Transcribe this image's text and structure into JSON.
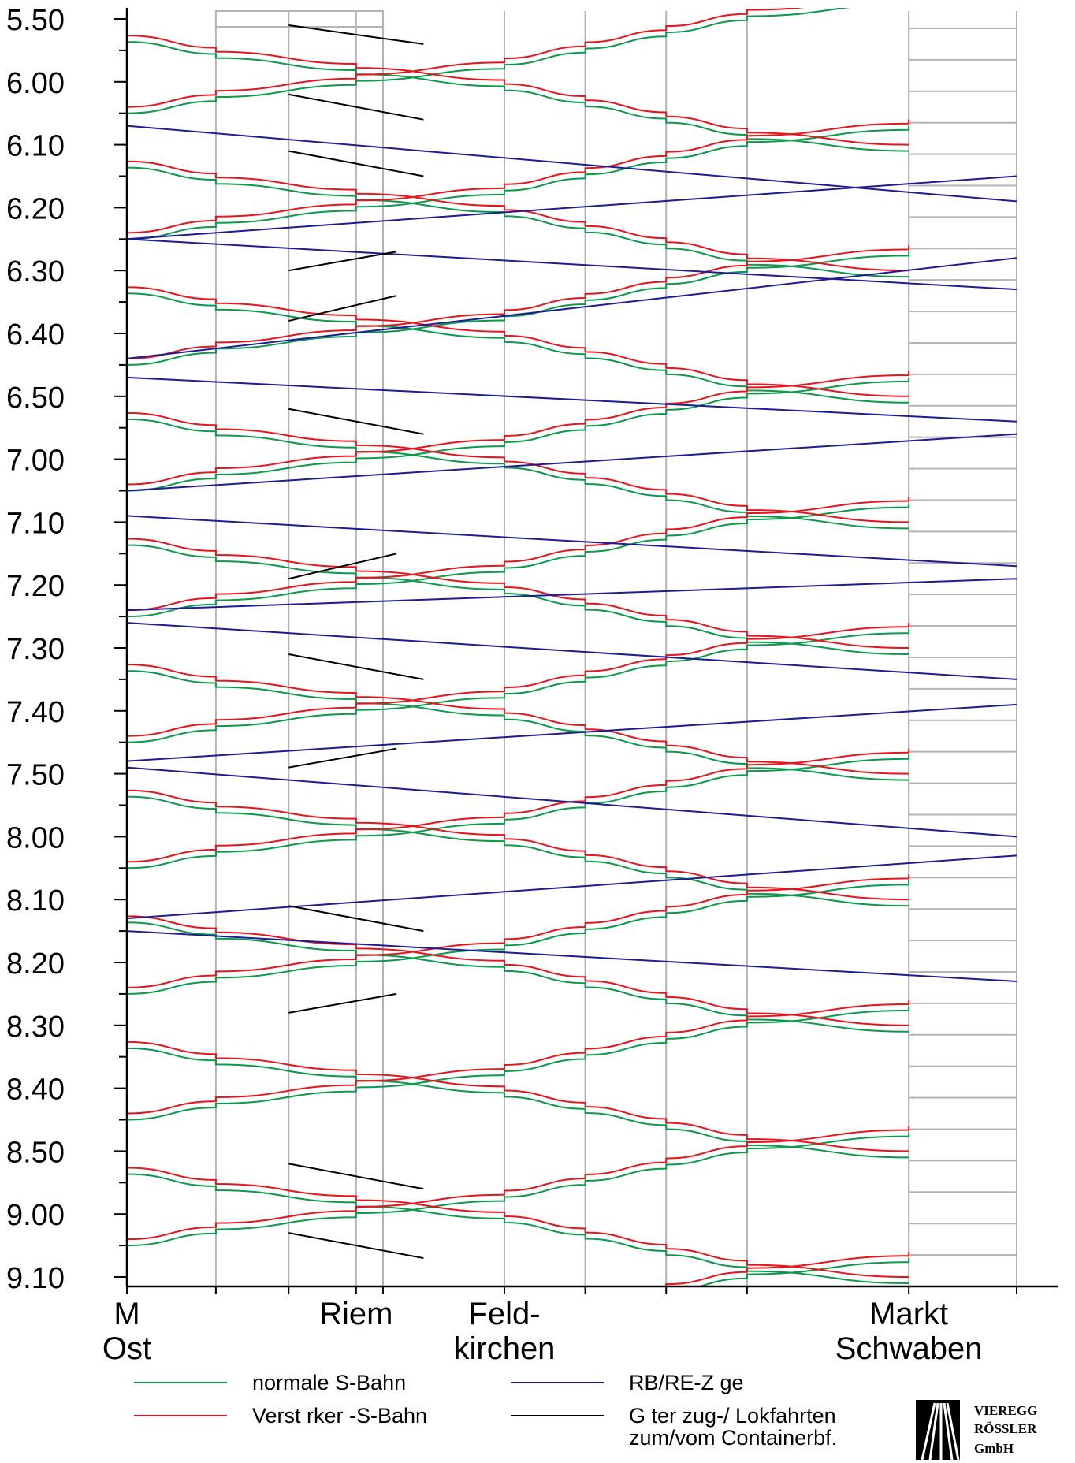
{
  "colors": {
    "normal": "#0a9a4a",
    "reinforcement": "#e8141c",
    "regional": "#1c1c96",
    "freight": "#000000",
    "grid": "#b4b4b4"
  },
  "logo": {
    "line1": "VIEREGG",
    "line2": "RÖSSLER",
    "line3": "GmbH",
    "icon": "rail-tracks-logo-icon"
  },
  "chart_data": {
    "type": "line",
    "title": "",
    "xlabel": "",
    "ylabel": "",
    "y_axis": {
      "start_minutes": 350,
      "end_minutes": 550,
      "inverted": true,
      "labels": [
        {
          "m": 350,
          "label": "5.50"
        },
        {
          "m": 360,
          "label": "6.00"
        },
        {
          "m": 370,
          "label": "6.10"
        },
        {
          "m": 380,
          "label": "6.20"
        },
        {
          "m": 390,
          "label": "6.30"
        },
        {
          "m": 400,
          "label": "6.40"
        },
        {
          "m": 410,
          "label": "6.50"
        },
        {
          "m": 420,
          "label": "7.00"
        },
        {
          "m": 430,
          "label": "7.10"
        },
        {
          "m": 440,
          "label": "7.20"
        },
        {
          "m": 450,
          "label": "7.30"
        },
        {
          "m": 460,
          "label": "7.40"
        },
        {
          "m": 470,
          "label": "7.50"
        },
        {
          "m": 480,
          "label": "8.00"
        },
        {
          "m": 490,
          "label": "8.10"
        },
        {
          "m": 500,
          "label": "8.20"
        },
        {
          "m": 510,
          "label": "8.30"
        },
        {
          "m": 520,
          "label": "8.40"
        },
        {
          "m": 530,
          "label": "8.50"
        },
        {
          "m": 540,
          "label": "9.00"
        },
        {
          "m": 550,
          "label": "9.10"
        }
      ]
    },
    "stations": [
      {
        "name": "M Ost",
        "km": 0,
        "lines": [
          "M",
          "Ost"
        ]
      },
      {
        "name": "",
        "km": 3.3,
        "lines": []
      },
      {
        "name": "",
        "km": 6.0,
        "lines": []
      },
      {
        "name": "Riem",
        "km": 8.5,
        "lines": [
          "Riem"
        ]
      },
      {
        "name": "",
        "km": 9.5,
        "lines": []
      },
      {
        "name": "Feldkirchen",
        "km": 14.0,
        "lines": [
          "Feld-",
          "kirchen"
        ]
      },
      {
        "name": "",
        "km": 17.0,
        "lines": []
      },
      {
        "name": "",
        "km": 20.0,
        "lines": []
      },
      {
        "name": "",
        "km": 23.0,
        "lines": []
      },
      {
        "name": "Markt Schwaben",
        "km": 29.0,
        "lines": [
          "Markt",
          "Schwaben"
        ]
      },
      {
        "name": "",
        "km": 33.0,
        "lines": []
      }
    ],
    "legend": [
      {
        "key": "normal",
        "label": "normale S-Bahn"
      },
      {
        "key": "reinforcement",
        "label": "Verst rker -S-Bahn"
      },
      {
        "key": "regional",
        "label": "RB/RE-Z ge"
      },
      {
        "key": "freight",
        "label": "G ter zug-/ Lokfahrten zum/vom Containerbf."
      }
    ],
    "series": [
      {
        "key": "normal",
        "period_minutes": 20,
        "first_minutes": 353,
        "last_minutes": 553,
        "direction": "both",
        "run_minutes": 18,
        "dwell_minutes": 1
      },
      {
        "key": "reinforcement",
        "period_minutes": 20,
        "first_minutes": 352,
        "last_minutes": 552,
        "direction": "both",
        "run_minutes": 18,
        "dwell_minutes": 1
      },
      {
        "key": "regional",
        "direction": "both",
        "runs": [
          {
            "from_km": 0,
            "to_km": 33,
            "dep": 367,
            "arr": 379
          },
          {
            "from_km": 33,
            "to_km": 0,
            "dep": 375,
            "arr": 385
          },
          {
            "from_km": 0,
            "to_km": 33,
            "dep": 385,
            "arr": 393
          },
          {
            "from_km": 33,
            "to_km": 0,
            "dep": 388,
            "arr": 404
          },
          {
            "from_km": 0,
            "to_km": 33,
            "dep": 407,
            "arr": 414
          },
          {
            "from_km": 33,
            "to_km": 0,
            "dep": 416,
            "arr": 425
          },
          {
            "from_km": 0,
            "to_km": 33,
            "dep": 429,
            "arr": 437
          },
          {
            "from_km": 33,
            "to_km": 0,
            "dep": 439,
            "arr": 444
          },
          {
            "from_km": 0,
            "to_km": 33,
            "dep": 446,
            "arr": 455
          },
          {
            "from_km": 33,
            "to_km": 0,
            "dep": 459,
            "arr": 468
          },
          {
            "from_km": 0,
            "to_km": 33,
            "dep": 469,
            "arr": 480
          },
          {
            "from_km": 33,
            "to_km": 0,
            "dep": 483,
            "arr": 493
          },
          {
            "from_km": 0,
            "to_km": 33,
            "dep": 495,
            "arr": 503
          }
        ]
      },
      {
        "key": "freight",
        "direction": "both",
        "runs": [
          {
            "from_km": 6,
            "to_km": 11,
            "dep": 351,
            "arr": 354
          },
          {
            "from_km": 6,
            "to_km": 11,
            "dep": 362,
            "arr": 366
          },
          {
            "from_km": 6,
            "to_km": 11,
            "dep": 371,
            "arr": 375
          },
          {
            "from_km": 6,
            "to_km": 10,
            "dep": 390,
            "arr": 387
          },
          {
            "from_km": 6,
            "to_km": 10,
            "dep": 398,
            "arr": 394
          },
          {
            "from_km": 6,
            "to_km": 11,
            "dep": 412,
            "arr": 416
          },
          {
            "from_km": 6,
            "to_km": 10,
            "dep": 439,
            "arr": 435
          },
          {
            "from_km": 6,
            "to_km": 11,
            "dep": 451,
            "arr": 455
          },
          {
            "from_km": 6,
            "to_km": 10,
            "dep": 469,
            "arr": 466
          },
          {
            "from_km": 6,
            "to_km": 11,
            "dep": 491,
            "arr": 495
          },
          {
            "from_km": 6,
            "to_km": 10,
            "dep": 508,
            "arr": 505
          },
          {
            "from_km": 6,
            "to_km": 11,
            "dep": 532,
            "arr": 536
          },
          {
            "from_km": 6,
            "to_km": 11,
            "dep": 543,
            "arr": 547
          }
        ]
      }
    ]
  }
}
